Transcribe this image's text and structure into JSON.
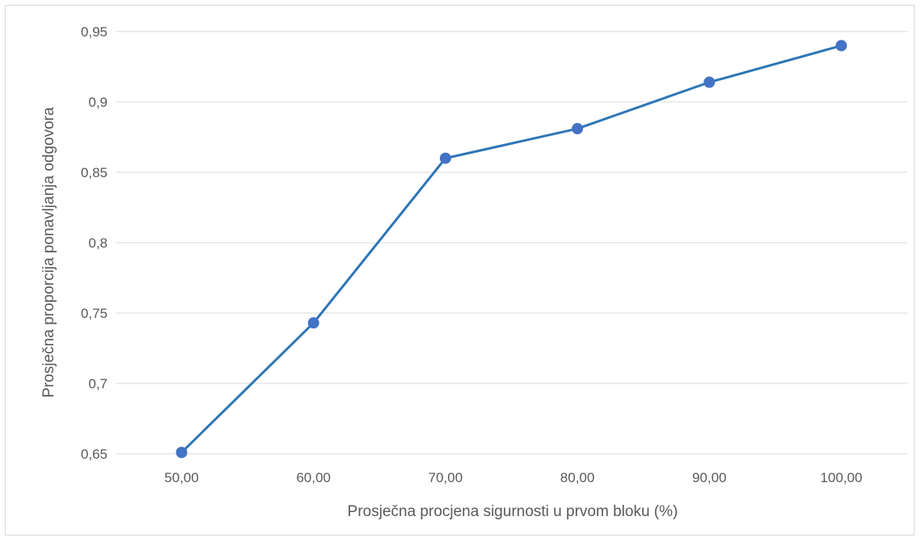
{
  "chart_data": {
    "type": "line",
    "title": "",
    "xlabel": "Prosječna procjena sigurnosti u prvom bloku (%)",
    "ylabel": "Prosječna proporcija ponavljanja odgovora",
    "categories": [
      "50,00",
      "60,00",
      "70,00",
      "80,00",
      "90,00",
      "100,00"
    ],
    "series": [
      {
        "values": [
          0.651,
          0.743,
          0.86,
          0.881,
          0.914,
          0.94
        ],
        "color": "#2e75b6",
        "marker_color": "#4472c4"
      }
    ],
    "ylim": [
      0.65,
      0.95
    ],
    "yticks": [
      0.65,
      0.7,
      0.75,
      0.8,
      0.85,
      0.9,
      0.95
    ],
    "ytick_labels": [
      "0,65",
      "0,7",
      "0,75",
      "0,8",
      "0,85",
      "0,9",
      "0,95"
    ],
    "grid": true,
    "legend": "none",
    "colors": {
      "grid": "#d9d9d9",
      "text": "#595959"
    }
  }
}
